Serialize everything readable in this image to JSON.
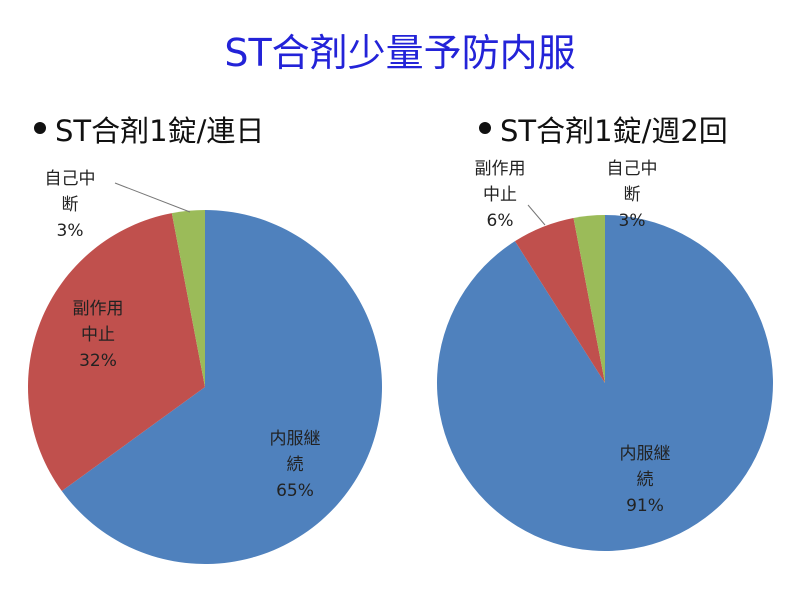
{
  "title": "ST合剤少量予防内服",
  "chart_data": [
    {
      "type": "pie",
      "title": "ST合剤1錠/連日",
      "categories": [
        "内服継続",
        "副作用中止",
        "自己中断"
      ],
      "values": [
        65,
        32,
        3
      ],
      "value_labels": [
        "65%",
        "32%",
        "3%"
      ],
      "colors": [
        "#4f81bd",
        "#c0504d",
        "#9bbb59"
      ]
    },
    {
      "type": "pie",
      "title": "ST合剤1錠/週2回",
      "categories": [
        "内服継続",
        "副作用中止",
        "自己中断"
      ],
      "values": [
        91,
        6,
        3
      ],
      "value_labels": [
        "91%",
        "6%",
        "3%"
      ],
      "colors": [
        "#4f81bd",
        "#c0504d",
        "#9bbb59"
      ]
    }
  ]
}
